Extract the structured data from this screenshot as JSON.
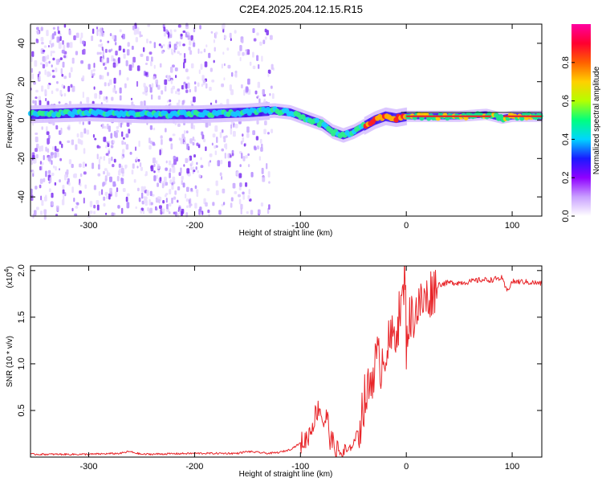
{
  "title": "C2E4.2025.204.12.15.R15",
  "colors": {
    "snr_line": "#e8262a",
    "ridge_core": "#e8262a",
    "speckle": "#7b2ff0"
  },
  "chart_data": [
    {
      "type": "heatmap",
      "xlabel": "Height of straight line (km)",
      "ylabel": "Frequency (Hz)",
      "xlim": [
        -355,
        128
      ],
      "ylim": [
        -50,
        50
      ],
      "x_ticks": [
        -300,
        -200,
        -100,
        0,
        100
      ],
      "x_tick_labels": [
        "-300",
        "-200",
        "-100",
        "0",
        "100"
      ],
      "y_ticks": [
        -40,
        -20,
        0,
        20,
        40
      ],
      "y_tick_labels": [
        "-40",
        "-20",
        "0",
        "20",
        "40"
      ],
      "noise_region_x": [
        -355,
        -125
      ],
      "ridge": {
        "x": [
          -355,
          -300,
          -250,
          -200,
          -150,
          -125,
          -110,
          -95,
          -80,
          -70,
          -60,
          -50,
          -40,
          -30,
          -20,
          -10,
          0,
          20,
          50,
          75,
          90,
          100,
          128
        ],
        "y": [
          3,
          4,
          3,
          3,
          4,
          5,
          4,
          1,
          -2,
          -6,
          -8,
          -6,
          -3,
          0,
          2,
          1,
          2,
          2,
          2,
          3,
          1,
          2,
          2
        ]
      },
      "colorbar": {
        "label": "Normalized spectral amplitude",
        "range": [
          0,
          1
        ],
        "ticks": [
          0.0,
          0.2,
          0.4,
          0.6,
          0.8
        ],
        "tick_labels": [
          "0.0",
          "0.2",
          "0.4",
          "0.6",
          "0.8"
        ],
        "colormap": [
          "#ffffff",
          "#c9a0ff",
          "#8f00ff",
          "#1a1aff",
          "#00d5ff",
          "#00ff7f",
          "#b4ff00",
          "#ffd000",
          "#ff6000",
          "#ff0030",
          "#ff00a0"
        ]
      },
      "grid": false
    },
    {
      "type": "line",
      "xlabel": "Height of straight line (km)",
      "ylabel": "SNR (10 * v/v)",
      "y_exponent_label": "(x10",
      "y_exponent_power": "4",
      "y_exponent_close": ")",
      "xlim": [
        -355,
        128
      ],
      "ylim": [
        0,
        2.05
      ],
      "x_ticks": [
        -300,
        -200,
        -100,
        0,
        100
      ],
      "x_tick_labels": [
        "-300",
        "-200",
        "-100",
        "0",
        "100"
      ],
      "y_ticks": [
        0.5,
        1.0,
        1.5,
        2.0
      ],
      "y_tick_labels": [
        "0.5",
        "1.0",
        "1.5",
        "2.0"
      ],
      "series": [
        {
          "color": "#e8262a",
          "x": [
            -355,
            -300,
            -270,
            -262,
            -250,
            -200,
            -160,
            -150,
            -130,
            -120,
            -110,
            -100,
            -95,
            -90,
            -86,
            -82,
            -78,
            -75,
            -72,
            -68,
            -64,
            -60,
            -55,
            -50,
            -45,
            -40,
            -36,
            -32,
            -28,
            -24,
            -20,
            -16,
            -12,
            -8,
            -5,
            -3,
            -1,
            0,
            2,
            5,
            10,
            15,
            20,
            25,
            30,
            40,
            50,
            60,
            70,
            80,
            90,
            95,
            100,
            110,
            120,
            128
          ],
          "y": [
            0.03,
            0.03,
            0.04,
            0.06,
            0.03,
            0.04,
            0.04,
            0.06,
            0.04,
            0.05,
            0.08,
            0.15,
            0.18,
            0.3,
            0.45,
            0.55,
            0.35,
            0.45,
            0.2,
            0.12,
            0.05,
            0.04,
            0.06,
            0.15,
            0.3,
            0.6,
            0.7,
            0.9,
            1.05,
            1.0,
            1.15,
            1.2,
            1.3,
            1.45,
            1.6,
            1.7,
            2.05,
            1.2,
            1.45,
            1.5,
            1.6,
            1.65,
            1.7,
            1.8,
            1.85,
            1.87,
            1.87,
            1.88,
            1.9,
            1.9,
            1.92,
            1.78,
            1.88,
            1.88,
            1.87,
            1.86
          ]
        }
      ],
      "grid": false
    }
  ]
}
